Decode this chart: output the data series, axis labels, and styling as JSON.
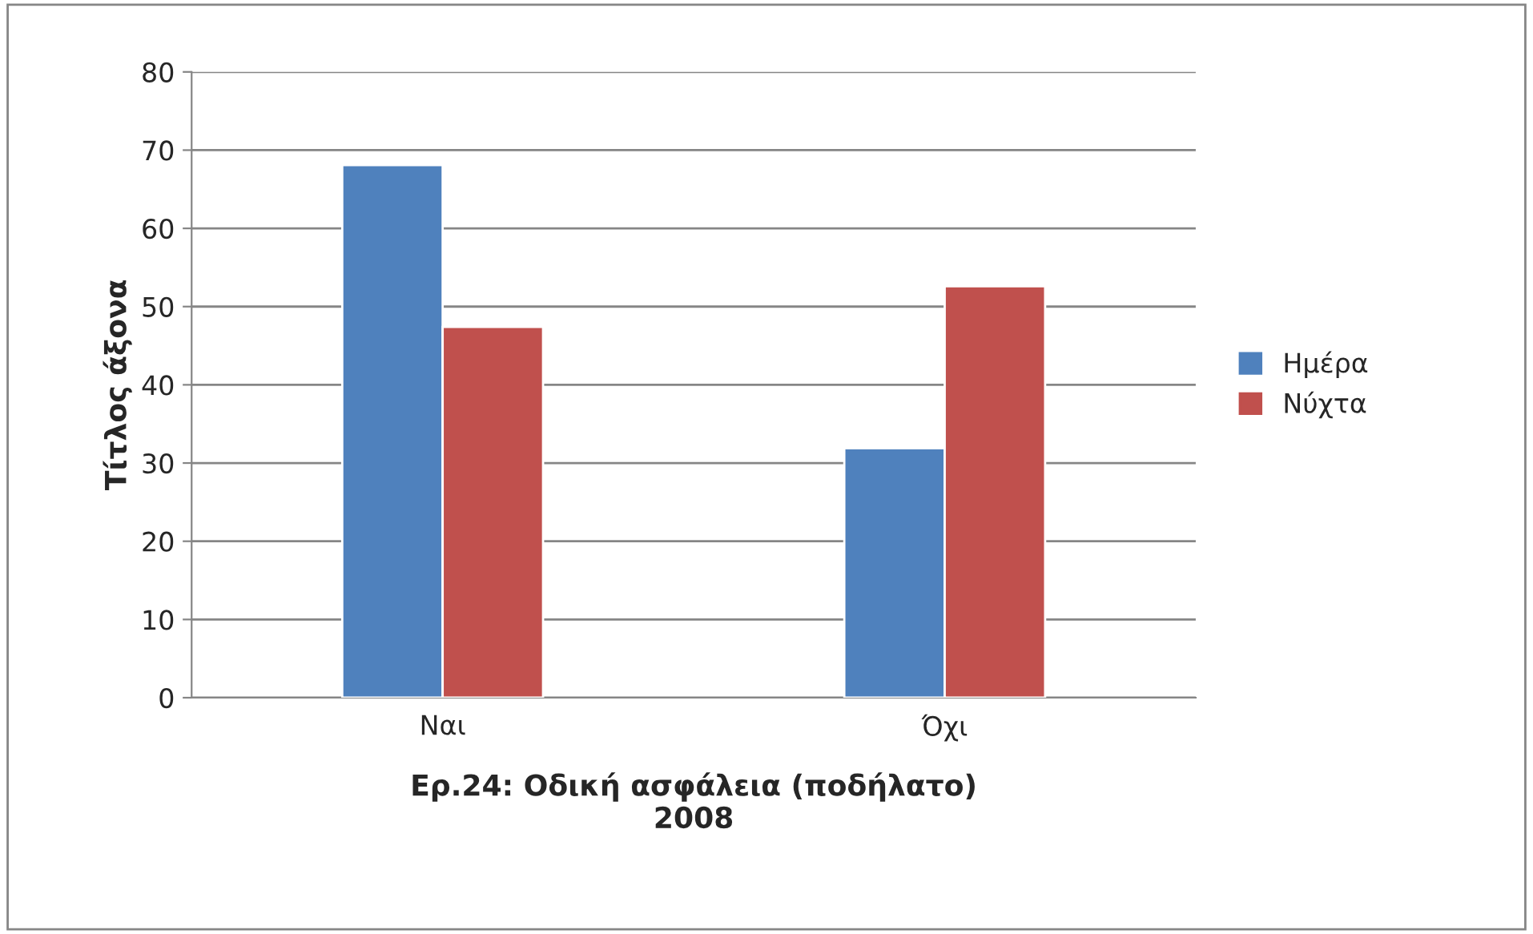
{
  "chart_data": {
    "type": "bar",
    "xlabel": "Ερ.24: Οδική ασφάλεια (ποδήλατο)\n2008",
    "ylabel": "Τίτλος άξονα",
    "categories": [
      "Ναι",
      "Όχι"
    ],
    "series": [
      {
        "name": "Ημέρα",
        "color": "#4f81bd",
        "values": [
          68.1,
          31.9
        ]
      },
      {
        "name": "Νύχτα",
        "color": "#c0504d",
        "values": [
          47.4,
          52.6
        ]
      }
    ],
    "ylim": [
      0,
      80
    ],
    "yticks": [
      0,
      10,
      20,
      30,
      40,
      50,
      60,
      70,
      80
    ],
    "grid": "y",
    "legend": "right"
  }
}
